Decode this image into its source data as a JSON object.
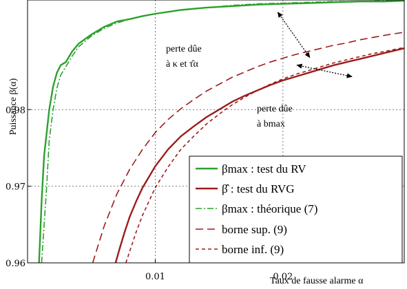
{
  "chart_data": {
    "type": "line",
    "xlabel": "Taux de fausse alarme α",
    "ylabel": "Puissance β(α)",
    "xlim": [
      0,
      0.0295
    ],
    "ylim": [
      0.96,
      0.9943
    ],
    "x_ticks": [
      0.01,
      0.02
    ],
    "x_tick_labels": [
      "0.01",
      "0.02"
    ],
    "y_ticks": [
      0.96,
      0.97,
      0.98
    ],
    "y_tick_labels": [
      "0.96",
      "0.97",
      "0.98"
    ],
    "grid": true,
    "legend_position": "bottom-right",
    "series": [
      {
        "name": "β_max : test du RV",
        "legend_label": "βmax : test du RV",
        "color": "#2ca02c",
        "style": "solid",
        "x": [
          0.0009,
          0.0011,
          0.0013,
          0.0015,
          0.0017,
          0.002,
          0.0023,
          0.0026,
          0.003,
          0.0035,
          0.004,
          0.005,
          0.006,
          0.007,
          0.008,
          0.009,
          0.01,
          0.012,
          0.014,
          0.016,
          0.018,
          0.02,
          0.022,
          0.024,
          0.026,
          0.028,
          0.0295
        ],
        "y": [
          0.96,
          0.968,
          0.974,
          0.977,
          0.98,
          0.983,
          0.9848,
          0.9858,
          0.9862,
          0.9876,
          0.9886,
          0.9898,
          0.9908,
          0.9915,
          0.9918,
          0.9922,
          0.9925,
          0.993,
          0.9933,
          0.9935,
          0.9937,
          0.9938,
          0.9939,
          0.994,
          0.9941,
          0.9941,
          0.9942
        ]
      },
      {
        "name": "β̂ : test du RVG",
        "legend_label": "β̂ : test du RVG",
        "color": "#9b1b1b",
        "style": "solid",
        "x": [
          0.0069,
          0.0072,
          0.0076,
          0.008,
          0.0085,
          0.009,
          0.0095,
          0.01,
          0.011,
          0.012,
          0.013,
          0.014,
          0.015,
          0.016,
          0.017,
          0.018,
          0.019,
          0.02,
          0.021,
          0.022,
          0.023,
          0.024,
          0.025,
          0.026,
          0.027,
          0.028,
          0.0295
        ],
        "y": [
          0.96,
          0.9618,
          0.964,
          0.966,
          0.968,
          0.9698,
          0.9712,
          0.9726,
          0.9748,
          0.9765,
          0.9778,
          0.979,
          0.98,
          0.981,
          0.9818,
          0.9825,
          0.9832,
          0.9838,
          0.9843,
          0.9848,
          0.9853,
          0.9858,
          0.9862,
          0.9866,
          0.987,
          0.9874,
          0.988
        ]
      },
      {
        "name": "β_max : théorique (7)",
        "legend_label": "βmax : théorique (7)",
        "color": "#2ca02c",
        "style": "dashdot",
        "x": [
          0.0011,
          0.0013,
          0.0015,
          0.0017,
          0.002,
          0.0023,
          0.0026,
          0.003,
          0.0035,
          0.004,
          0.005,
          0.006,
          0.007,
          0.008,
          0.009,
          0.01,
          0.012,
          0.014,
          0.016,
          0.018,
          0.02,
          0.022,
          0.024,
          0.026,
          0.028,
          0.0295
        ],
        "y": [
          0.96,
          0.965,
          0.97,
          0.976,
          0.98,
          0.9828,
          0.9845,
          0.9856,
          0.987,
          0.9882,
          0.9896,
          0.9906,
          0.9913,
          0.9918,
          0.9922,
          0.9925,
          0.993,
          0.9933,
          0.9936,
          0.9938,
          0.9939,
          0.994,
          0.9941,
          0.9941,
          0.9942,
          0.9942
        ]
      },
      {
        "name": "borne sup. (9)",
        "legend_label": "borne sup. (9)",
        "color": "#9b1b1b",
        "style": "dashed",
        "x": [
          0.0051,
          0.006,
          0.007,
          0.008,
          0.009,
          0.01,
          0.011,
          0.012,
          0.013,
          0.014,
          0.015,
          0.016,
          0.017,
          0.018,
          0.019,
          0.02,
          0.021,
          0.022,
          0.023,
          0.024,
          0.025,
          0.026,
          0.027,
          0.028,
          0.0295
        ],
        "y": [
          0.96,
          0.9648,
          0.969,
          0.9722,
          0.9748,
          0.977,
          0.9787,
          0.9801,
          0.9813,
          0.9824,
          0.9833,
          0.9842,
          0.9849,
          0.9856,
          0.9862,
          0.9867,
          0.9872,
          0.9876,
          0.988,
          0.9884,
          0.9887,
          0.9891,
          0.9894,
          0.9897,
          0.9901
        ]
      },
      {
        "name": "borne inf. (9)",
        "legend_label": "borne inf. (9)",
        "color": "#9b1b1b",
        "style": "dotted",
        "x": [
          0.0077,
          0.0085,
          0.009,
          0.01,
          0.011,
          0.012,
          0.013,
          0.014,
          0.015,
          0.016,
          0.017,
          0.018,
          0.019,
          0.02,
          0.021,
          0.022,
          0.023,
          0.024,
          0.025,
          0.026,
          0.027,
          0.028,
          0.0295
        ],
        "y": [
          0.96,
          0.964,
          0.9662,
          0.9698,
          0.9725,
          0.9748,
          0.9765,
          0.9781,
          0.9794,
          0.9806,
          0.9816,
          0.9825,
          0.9833,
          0.984,
          0.9846,
          0.9851,
          0.9856,
          0.9861,
          0.9865,
          0.9869,
          0.9873,
          0.9876,
          0.9881
        ]
      }
    ],
    "annotations": [
      {
        "lines": [
          "perte dûe",
          "à κ et τ̂α"
        ],
        "arrow_from": [
          0.0196,
          0.9927
        ],
        "arrow_to": [
          0.0221,
          0.9868
        ]
      },
      {
        "lines": [
          "perte dûe",
          "à bmax"
        ],
        "arrow_from": [
          0.0211,
          0.9858
        ],
        "arrow_to": [
          0.0254,
          0.9843
        ]
      }
    ]
  }
}
